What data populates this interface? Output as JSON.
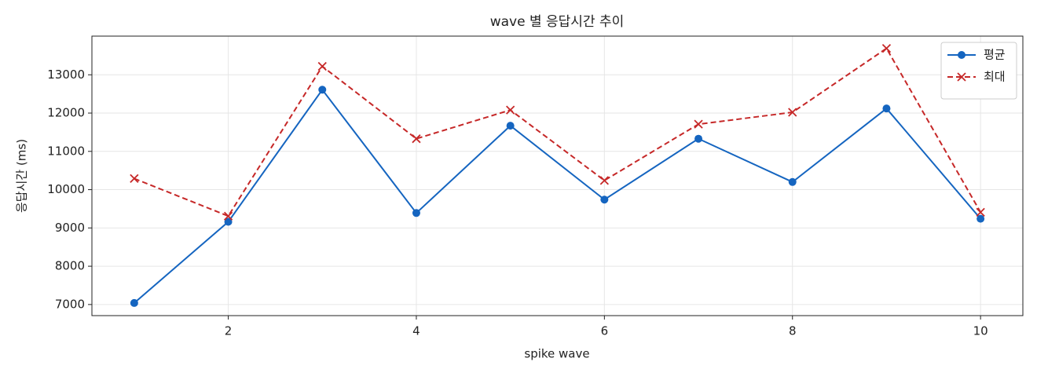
{
  "chart_data": {
    "type": "line",
    "title": "wave 별 응답시간 추이",
    "x_label": "spike wave",
    "y_label": "응답시간 (ms)",
    "x": [
      1,
      2,
      3,
      4,
      5,
      6,
      7,
      8,
      9,
      10
    ],
    "series": [
      {
        "name": "평균",
        "color": "#1565c0",
        "marker": "circle",
        "dash": "solid",
        "values": [
          7040,
          9160,
          12610,
          9390,
          11670,
          9740,
          11330,
          10200,
          12120,
          9240
        ]
      },
      {
        "name": "최대",
        "color": "#c62828",
        "marker": "x",
        "dash": "dashed",
        "values": [
          10290,
          9310,
          13220,
          11330,
          12080,
          10240,
          11710,
          12020,
          13690,
          9410
        ]
      }
    ],
    "xlim": [
      0.55,
      10.45
    ],
    "xticks": [
      2,
      4,
      6,
      8,
      10
    ],
    "ylim": [
      6710,
      14010
    ],
    "yticks": [
      7000,
      8000,
      9000,
      10000,
      11000,
      12000,
      13000
    ],
    "grid": true,
    "legend": "upper right"
  }
}
